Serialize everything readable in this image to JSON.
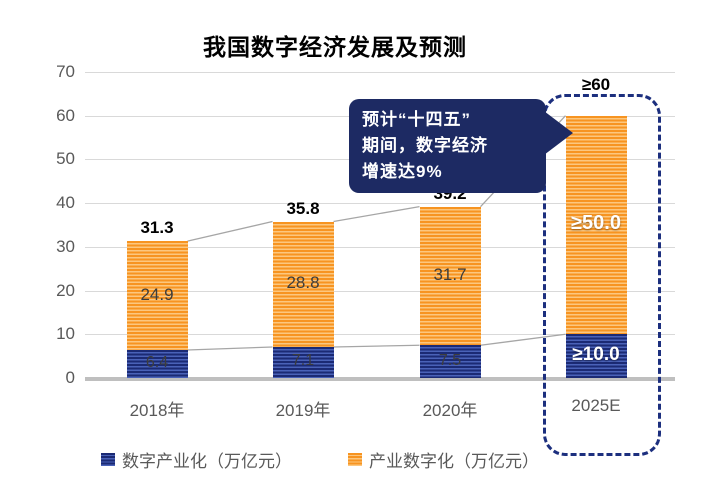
{
  "chart_data": {
    "type": "bar",
    "stacked": true,
    "title": "我国数字经济发展及预测",
    "categories": [
      "2018年",
      "2019年",
      "2020年",
      "2025E"
    ],
    "series": [
      {
        "name": "数字产业化（万亿元）",
        "color": "#1b2a74",
        "stripe_color": "#4a62b8",
        "values": [
          6.4,
          7.1,
          7.5,
          10
        ],
        "labels": [
          "6.4",
          "7.1",
          "7.5",
          "≥10.0"
        ],
        "label_colors": [
          "#3d3d3d",
          "#3d3d3d",
          "#3d3d3d",
          "#ffffff"
        ]
      },
      {
        "name": "产业数字化（万亿元）",
        "color": "#f79421",
        "stripe_color": "#fcc77f",
        "values": [
          24.9,
          28.8,
          31.7,
          50
        ],
        "labels": [
          "24.9",
          "28.8",
          "31.7",
          "≥50.0"
        ],
        "label_colors": [
          "#3d3d3d",
          "#3d3d3d",
          "#3d3d3d",
          "#ffffff"
        ]
      }
    ],
    "totals": [
      31.3,
      35.8,
      39.2,
      60
    ],
    "total_labels": [
      "31.3",
      "35.8",
      "39.2",
      "≥60"
    ],
    "y_ticks": [
      0,
      10,
      20,
      30,
      40,
      50,
      60,
      70
    ],
    "ylim": [
      0,
      70
    ],
    "grid": true,
    "legend_position": "bottom",
    "trendline_color": "#a6a6a6"
  },
  "annotation": {
    "lines": [
      "预计“十四五”",
      "期间，数字经济",
      "增速达9%"
    ],
    "bg_color": "#1d2a63",
    "text_color": "#ffffff"
  },
  "highlight": {
    "category": "2025E",
    "border_color": "#1c2f7e"
  }
}
